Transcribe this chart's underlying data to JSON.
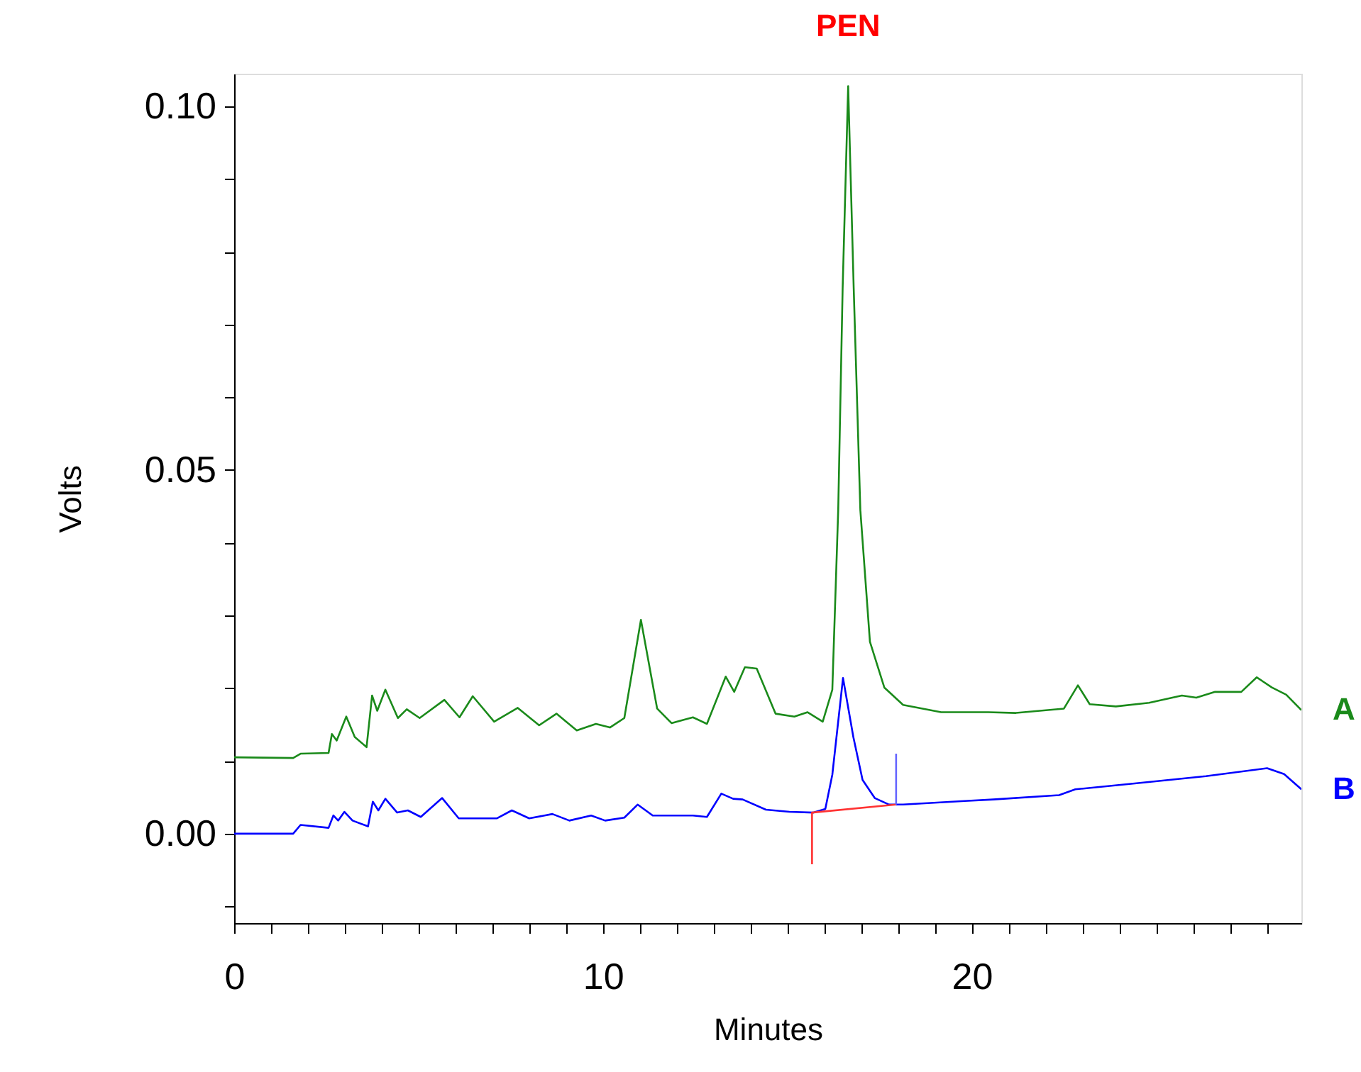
{
  "chart_data": {
    "type": "line",
    "xlabel": "Minutes",
    "ylabel": "Volts",
    "annotations": [
      {
        "text": "PEN",
        "x": 16.65,
        "y": 0.1028
      }
    ],
    "xlim": [
      0,
      28.94
    ],
    "ylim": [
      -0.0123,
      0.1045
    ],
    "xticks": [
      0,
      {
        "value": 1,
        "label": null
      },
      {
        "value": 2,
        "label": null
      },
      {
        "value": 3,
        "label": null
      },
      {
        "value": 4,
        "label": null
      },
      {
        "value": 5,
        "label": null
      },
      {
        "value": 6,
        "label": null
      },
      {
        "value": 7,
        "label": null
      },
      {
        "value": 8,
        "label": null
      },
      {
        "value": 9,
        "label": null
      },
      10,
      {
        "value": 11,
        "label": null
      },
      {
        "value": 12,
        "label": null
      },
      {
        "value": 13,
        "label": null
      },
      {
        "value": 14,
        "label": null
      },
      {
        "value": 15,
        "label": null
      },
      {
        "value": 16,
        "label": null
      },
      {
        "value": 17,
        "label": null
      },
      {
        "value": 18,
        "label": null
      },
      {
        "value": 19,
        "label": null
      },
      20,
      {
        "value": 21,
        "label": null
      },
      {
        "value": 22,
        "label": null
      },
      {
        "value": 23,
        "label": null
      },
      {
        "value": 24,
        "label": null
      },
      {
        "value": 25,
        "label": null
      },
      {
        "value": 26,
        "label": null
      },
      {
        "value": 27,
        "label": null
      },
      {
        "value": 28,
        "label": null
      }
    ],
    "yticks": [
      {
        "value": -0.01,
        "label": null
      },
      {
        "value": 0,
        "label": "0.00"
      },
      {
        "value": 0.01,
        "label": null
      },
      {
        "value": 0.02,
        "label": null
      },
      {
        "value": 0.03,
        "label": null
      },
      {
        "value": 0.04,
        "label": null
      },
      {
        "value": 0.05,
        "label": "0.05"
      },
      {
        "value": 0.06,
        "label": null
      },
      {
        "value": 0.07,
        "label": null
      },
      {
        "value": 0.08,
        "label": null
      },
      {
        "value": 0.09,
        "label": null
      },
      {
        "value": 0.1,
        "label": "0.10"
      }
    ],
    "grid": false,
    "line_style": "solid",
    "marker": "none",
    "series": [
      {
        "name": "A",
        "color": "#1a8a1a",
        "x": [
          0,
          1.6,
          1.8,
          2.56,
          2.65,
          2.78,
          3.04,
          3.27,
          3.59,
          3.74,
          3.88,
          4.1,
          4.44,
          4.68,
          5.03,
          5.7,
          6.11,
          6.47,
          7.05,
          7.69,
          8.27,
          8.74,
          9.29,
          9.81,
          10.19,
          10.58,
          11.03,
          11.47,
          11.86,
          12.44,
          12.82,
          13.33,
          13.56,
          13.85,
          14.17,
          14.68,
          15.19,
          15.55,
          15.96,
          16.22,
          16.38,
          16.5,
          16.65,
          16.8,
          16.98,
          17.24,
          17.63,
          18.14,
          19.17,
          20.45,
          21.2,
          22.5,
          22.88,
          23.2,
          23.91,
          24.81,
          25.7,
          26.09,
          26.6,
          27.31,
          27.73,
          28.14,
          28.53,
          28.94
        ],
        "values": [
          0.0105,
          0.0104,
          0.011,
          0.0111,
          0.0137,
          0.0128,
          0.0161,
          0.0133,
          0.0119,
          0.019,
          0.0169,
          0.0198,
          0.0159,
          0.0171,
          0.0159,
          0.0184,
          0.016,
          0.0189,
          0.0154,
          0.0173,
          0.0149,
          0.0165,
          0.0142,
          0.0151,
          0.0146,
          0.0159,
          0.0294,
          0.0172,
          0.0152,
          0.016,
          0.0151,
          0.0216,
          0.0195,
          0.0229,
          0.0227,
          0.0165,
          0.0161,
          0.0167,
          0.0154,
          0.0198,
          0.0445,
          0.075,
          0.1028,
          0.075,
          0.0445,
          0.0264,
          0.0201,
          0.0177,
          0.0167,
          0.0167,
          0.0166,
          0.0172,
          0.0204,
          0.0178,
          0.0175,
          0.018,
          0.019,
          0.0187,
          0.0195,
          0.0195,
          0.0215,
          0.0201,
          0.0191,
          0.017
        ]
      },
      {
        "name": "B",
        "color": "#0000ff",
        "x": [
          0,
          1.6,
          1.8,
          2.56,
          2.69,
          2.82,
          2.99,
          3.21,
          3.63,
          3.76,
          3.91,
          4.1,
          4.42,
          4.71,
          5.06,
          5.64,
          6.09,
          7.12,
          7.53,
          8.0,
          8.63,
          9.09,
          9.68,
          10.06,
          10.58,
          10.94,
          11.35,
          12.44,
          12.82,
          13.21,
          13.53,
          13.79,
          14.42,
          15.06,
          15.71,
          16.03,
          16.22,
          16.51,
          16.79,
          17.04,
          17.37,
          17.76,
          18.14,
          19.81,
          20.58,
          22.37,
          22.81,
          24.42,
          26.35,
          28.01,
          28.47,
          28.94
        ],
        "values": [
          0,
          0,
          0.0012,
          0.0008,
          0.0025,
          0.0018,
          0.003,
          0.0018,
          0.001,
          0.0044,
          0.0032,
          0.0048,
          0.0029,
          0.0032,
          0.0023,
          0.0049,
          0.0021,
          0.0021,
          0.0032,
          0.0021,
          0.0027,
          0.0018,
          0.0025,
          0.0018,
          0.0022,
          0.004,
          0.0025,
          0.0025,
          0.0023,
          0.0055,
          0.0048,
          0.0047,
          0.0033,
          0.003,
          0.0029,
          0.0034,
          0.0081,
          0.0214,
          0.0133,
          0.0074,
          0.0049,
          0.004,
          0.004,
          0.0045,
          0.0047,
          0.0053,
          0.0061,
          0.0069,
          0.0079,
          0.009,
          0.0082,
          0.0061
        ]
      },
      {
        "color": "#ff3333",
        "x": [
          15.67,
          15.67,
          17.95
        ],
        "values": [
          -0.0042,
          0.0029,
          0.004
        ]
      },
      {
        "color": "#6666ff",
        "x": [
          17.95,
          17.95
        ],
        "values": [
          0.004,
          0.011
        ]
      }
    ]
  }
}
